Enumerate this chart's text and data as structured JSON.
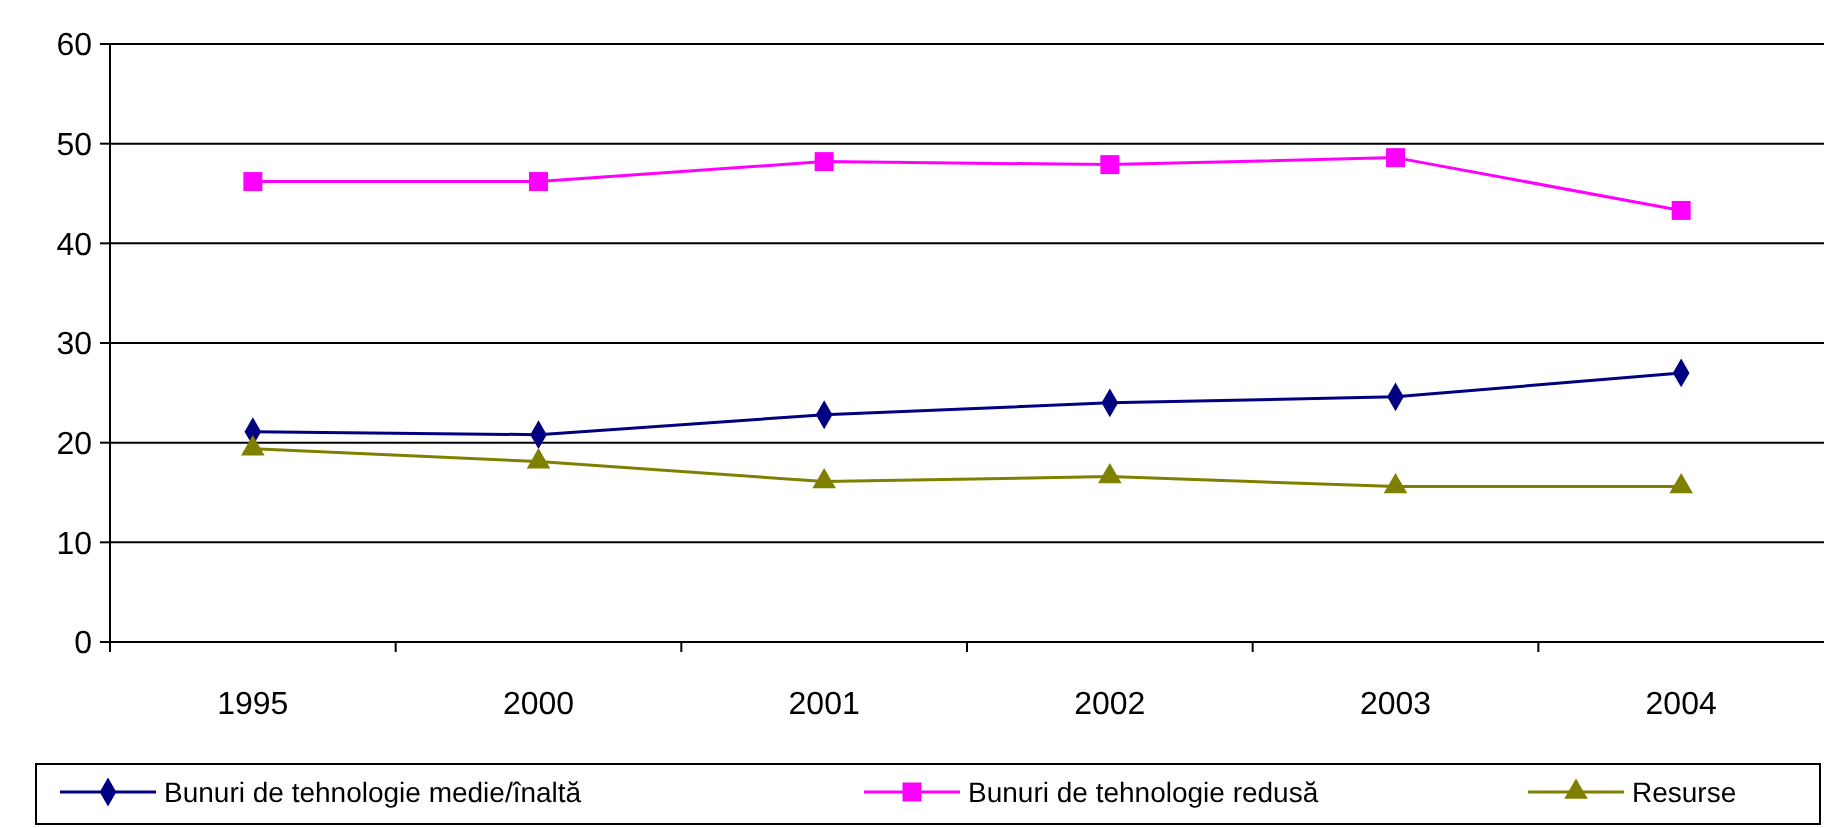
{
  "chart_data": {
    "type": "line",
    "categories": [
      "1995",
      "2000",
      "2001",
      "2002",
      "2003",
      "2004"
    ],
    "series": [
      {
        "name": "Bunuri de tehnologie medie/înaltă",
        "color": "#000080",
        "marker": "diamond",
        "values": [
          21.1,
          20.8,
          22.8,
          24.0,
          24.6,
          27.0
        ]
      },
      {
        "name": "Bunuri de tehnologie redusă",
        "color": "#ff00ff",
        "marker": "square",
        "values": [
          46.2,
          46.2,
          48.2,
          47.9,
          48.6,
          43.3
        ]
      },
      {
        "name": "Resurse",
        "color": "#808000",
        "marker": "triangle",
        "values": [
          19.4,
          18.1,
          16.1,
          16.6,
          15.6,
          15.6
        ]
      }
    ],
    "ylim": [
      0,
      60
    ],
    "yticks": [
      0,
      10,
      20,
      30,
      40,
      50,
      60
    ],
    "grid": "y",
    "legend": "bottom"
  }
}
